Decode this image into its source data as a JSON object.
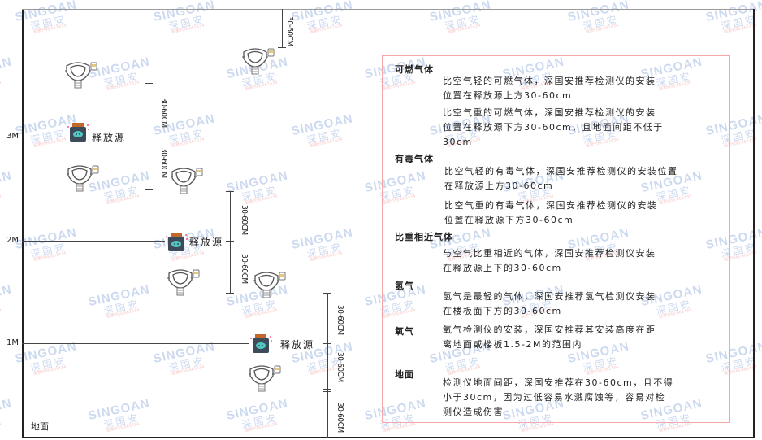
{
  "watermark": {
    "brand": "SINGOAN",
    "cn": "深国安",
    "code": "股票代码:661434"
  },
  "levels": {
    "m3": "3M",
    "m2": "2M",
    "m1": "1M",
    "ground": "地面"
  },
  "source_label": "释放源",
  "dimension_label": "30-60CM",
  "legend": {
    "combustible": {
      "title": "可燃气体",
      "lighter": [
        "比空气轻的可燃气体，深国安推荐检测仪的安装",
        "位置在释放源上方30-60cm"
      ],
      "heavier": [
        "比空气重的可燃气体，深国安推荐检测仪的安装",
        "位置在释放源下方30-60cm，且地面间距不低于",
        "30cm"
      ]
    },
    "toxic": {
      "title": "有毒气体",
      "lighter": [
        "比空气轻的有毒气体，深国安推荐检测仪的安装位置",
        "在释放源上方30-60cm"
      ],
      "heavier": [
        "比空气重的有毒气体，深国安推荐检测仪的安装",
        "位置在释放源下方30-60cm"
      ]
    },
    "similar": {
      "title": "比重相近气体",
      "text": [
        "与空气比重相近的气体，深国安推荐检测仪安装",
        "在释放源上下的30-60cm"
      ]
    },
    "hydrogen": {
      "title": "氢气",
      "text": [
        "氢气是最轻的气体，深国安推荐氢气检测仪安装",
        "在楼板面下方的30-60cm"
      ]
    },
    "oxygen": {
      "title": "氧气",
      "text": [
        "氧气检测仪的安装，深国安推荐其安装高度在距",
        "离地面或楼板1.5-2M的范围内"
      ]
    },
    "ground": {
      "title": "地面",
      "text": [
        "检测仪地面间距，深国安推荐在30-60cm，且不得",
        "小于30cm，因为过低容易水溅腐蚀等，容易对检",
        "测仪造成伤害"
      ]
    }
  },
  "colors": {
    "box_border": "#f4a6a8",
    "watermark": "#4a78c8"
  }
}
